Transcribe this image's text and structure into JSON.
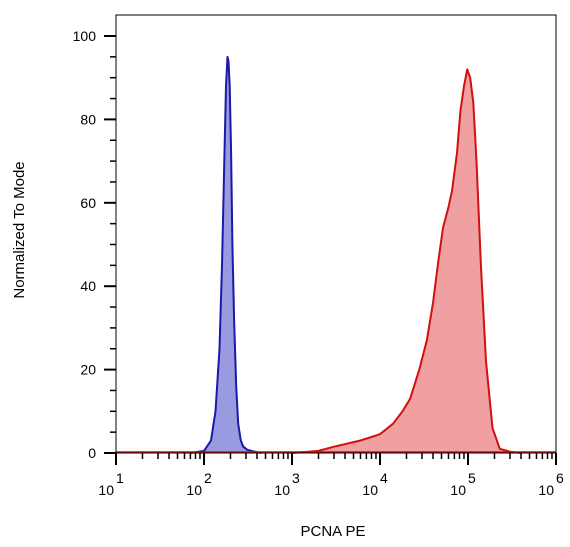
{
  "chart_data": {
    "type": "area",
    "title": "",
    "xlabel": "PCNA PE",
    "ylabel": "Normalized To Mode",
    "xscale": "log",
    "xlim": [
      10,
      1000000
    ],
    "ylim": [
      0,
      100
    ],
    "x_ticks": [
      {
        "base": "10",
        "exp": "1"
      },
      {
        "base": "10",
        "exp": "2"
      },
      {
        "base": "10",
        "exp": "3"
      },
      {
        "base": "10",
        "exp": "4"
      },
      {
        "base": "10",
        "exp": "5"
      },
      {
        "base": "10",
        "exp": "6"
      }
    ],
    "y_ticks": [
      "0",
      "20",
      "40",
      "60",
      "80",
      "100"
    ],
    "grid": false,
    "legend": "none",
    "series": [
      {
        "color": "#1a1aa8",
        "fill": "#9a9ae0",
        "x": [
          70,
          100,
          120,
          135,
          150,
          160,
          170,
          178,
          185,
          190,
          196,
          203,
          210,
          220,
          232,
          245,
          262,
          280,
          310,
          360,
          450
        ],
        "y": [
          0,
          0.5,
          3,
          10,
          25,
          45,
          70,
          88,
          95,
          94,
          88,
          72,
          50,
          32,
          16,
          7,
          3,
          1.5,
          0.8,
          0.4,
          0
        ]
      },
      {
        "color": "#d11010",
        "fill": "#f0a0a0",
        "x": [
          1000,
          2000,
          3000,
          6000,
          10000,
          14000,
          18000,
          22000,
          28000,
          34000,
          40000,
          46000,
          52000,
          60000,
          66000,
          75000,
          82000,
          90000,
          98000,
          106000,
          115000,
          125000,
          140000,
          160000,
          190000,
          230000,
          300000,
          400000
        ],
        "y": [
          0,
          0.5,
          1.5,
          3,
          4.5,
          7,
          10,
          13,
          20,
          27,
          36,
          46,
          54,
          59,
          63,
          72,
          82,
          88,
          92,
          90,
          84,
          70,
          45,
          22,
          6,
          1,
          0.3,
          0
        ]
      }
    ]
  }
}
